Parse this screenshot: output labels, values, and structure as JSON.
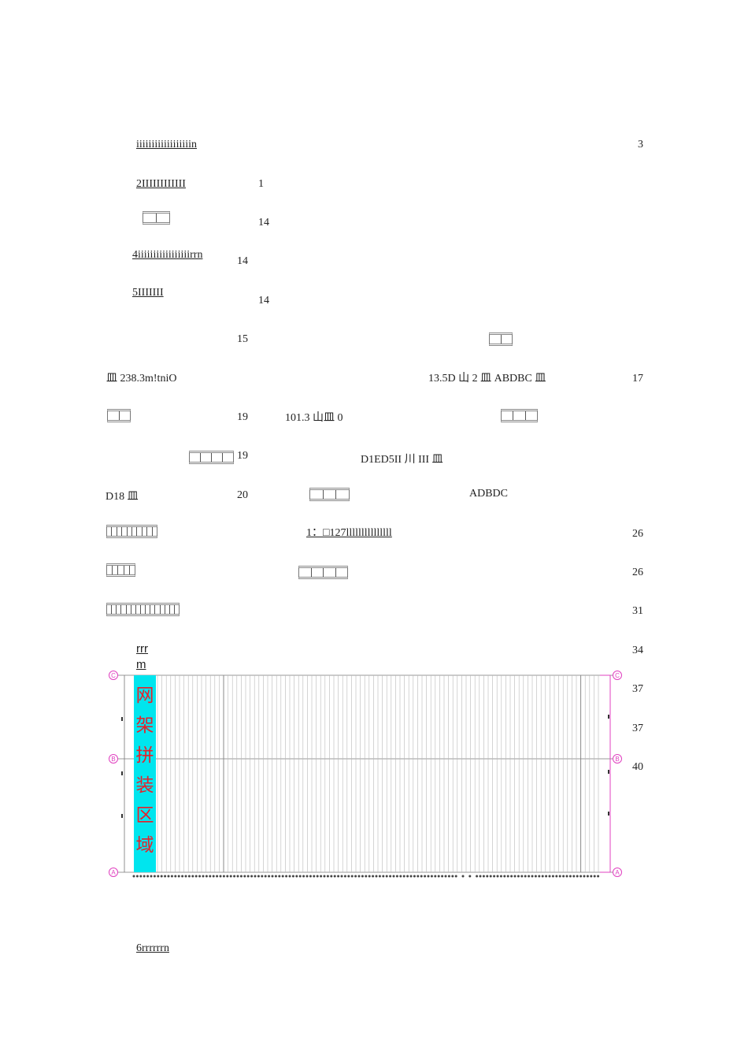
{
  "toc": {
    "line1_text": "iiiiiiiiiiiiiiiiiin",
    "line1_page": "3",
    "line2_text": "2IIIIIIIIIIII",
    "line2_page": "1",
    "line3_page": "14",
    "line4_text": "4iiiiiiiiiiiiiiiiirrn",
    "line4_page": "14",
    "line5_text": "5IIIIIII",
    "line5_page": "14",
    "line6_page": "15",
    "line7_left": "皿 238.3m!tniO",
    "line7_mid": "13.5D 山 2 皿 ABDBC 皿",
    "line7_page": "17",
    "line8_page": "19",
    "line8_mid": "101.3 山皿 0",
    "line9_page": "19",
    "line9_mid": "D1ED5II 川 III 皿",
    "line10_left": "D18 皿",
    "line10_page": "20",
    "line10_right": "ADBDC",
    "line11_mid": "1：□127lllllllllllllll",
    "line11_page": "26",
    "line12_page": "26",
    "line13_page": "31",
    "line14_text_a": "rrr",
    "line14_text_b": "m",
    "line14_page": "34",
    "line15_page": "37",
    "line16_page": "37",
    "line17_page": "40",
    "footer_text": "6rrrrrrn"
  },
  "drawing": {
    "axis_labels": [
      "C",
      "B",
      "A"
    ],
    "region_label": "网架拼装区域",
    "region_color": "#00e5ee",
    "region_text_color": "#e8202a",
    "axis_color": "#e040c0",
    "grid_color": "#9a9a9a"
  }
}
